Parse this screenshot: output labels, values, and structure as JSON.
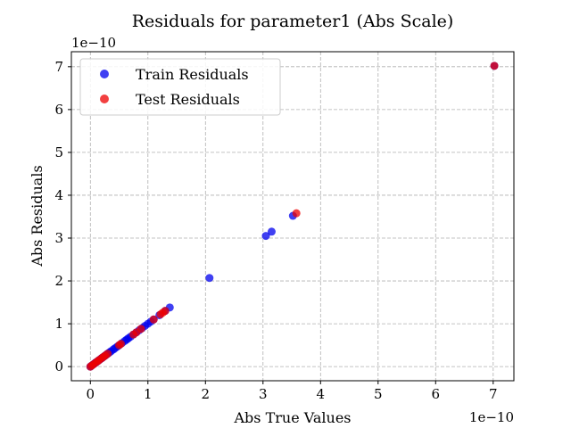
{
  "chart_data": {
    "type": "scatter",
    "title": "Residuals for parameter1 (Abs Scale)",
    "xlabel": "Abs True Values",
    "ylabel": "Abs Residuals",
    "x_offset_label": "1e−10",
    "y_offset_label": "1e−10",
    "xlim": [
      -0.33,
      7.36
    ],
    "ylim": [
      -0.33,
      7.35
    ],
    "xticks": [
      0,
      1,
      2,
      3,
      4,
      5,
      6,
      7
    ],
    "yticks": [
      0,
      1,
      2,
      3,
      4,
      5,
      6,
      7
    ],
    "x_tick_labels": [
      "0",
      "1",
      "2",
      "3",
      "4",
      "5",
      "6",
      "7"
    ],
    "y_tick_labels": [
      "0",
      "1",
      "2",
      "3",
      "4",
      "5",
      "6",
      "7"
    ],
    "scale_note": "values in units of 1e-10",
    "grid": true,
    "legend_position": "top-left",
    "series": [
      {
        "name": "Train Residuals",
        "color": "#0000ee",
        "x": [
          0.0,
          0.02,
          0.05,
          0.08,
          0.1,
          0.12,
          0.15,
          0.18,
          0.2,
          0.22,
          0.25,
          0.28,
          0.3,
          0.33,
          0.36,
          0.4,
          0.43,
          0.47,
          0.5,
          0.55,
          0.6,
          0.63,
          0.66,
          0.7,
          0.75,
          0.8,
          0.85,
          0.9,
          0.95,
          1.0,
          1.05,
          1.1,
          1.2,
          1.3,
          1.38,
          2.07,
          3.05,
          3.15,
          3.52,
          7.02
        ],
        "y": [
          0.0,
          0.02,
          0.05,
          0.08,
          0.1,
          0.12,
          0.15,
          0.18,
          0.2,
          0.22,
          0.25,
          0.28,
          0.3,
          0.33,
          0.36,
          0.4,
          0.43,
          0.47,
          0.5,
          0.55,
          0.6,
          0.63,
          0.66,
          0.7,
          0.75,
          0.8,
          0.85,
          0.9,
          0.95,
          1.0,
          1.05,
          1.1,
          1.2,
          1.3,
          1.38,
          2.07,
          3.05,
          3.15,
          3.52,
          7.02
        ]
      },
      {
        "name": "Test Residuals",
        "color": "#ee0000",
        "x": [
          0.0,
          0.03,
          0.06,
          0.1,
          0.13,
          0.16,
          0.2,
          0.23,
          0.26,
          0.3,
          0.5,
          0.53,
          0.75,
          0.8,
          0.88,
          1.1,
          1.22,
          1.26,
          1.3,
          3.58,
          7.02
        ],
        "y": [
          0.0,
          0.03,
          0.06,
          0.1,
          0.13,
          0.16,
          0.2,
          0.23,
          0.26,
          0.3,
          0.5,
          0.53,
          0.75,
          0.8,
          0.88,
          1.1,
          1.22,
          1.26,
          1.3,
          3.58,
          7.02
        ]
      }
    ]
  }
}
